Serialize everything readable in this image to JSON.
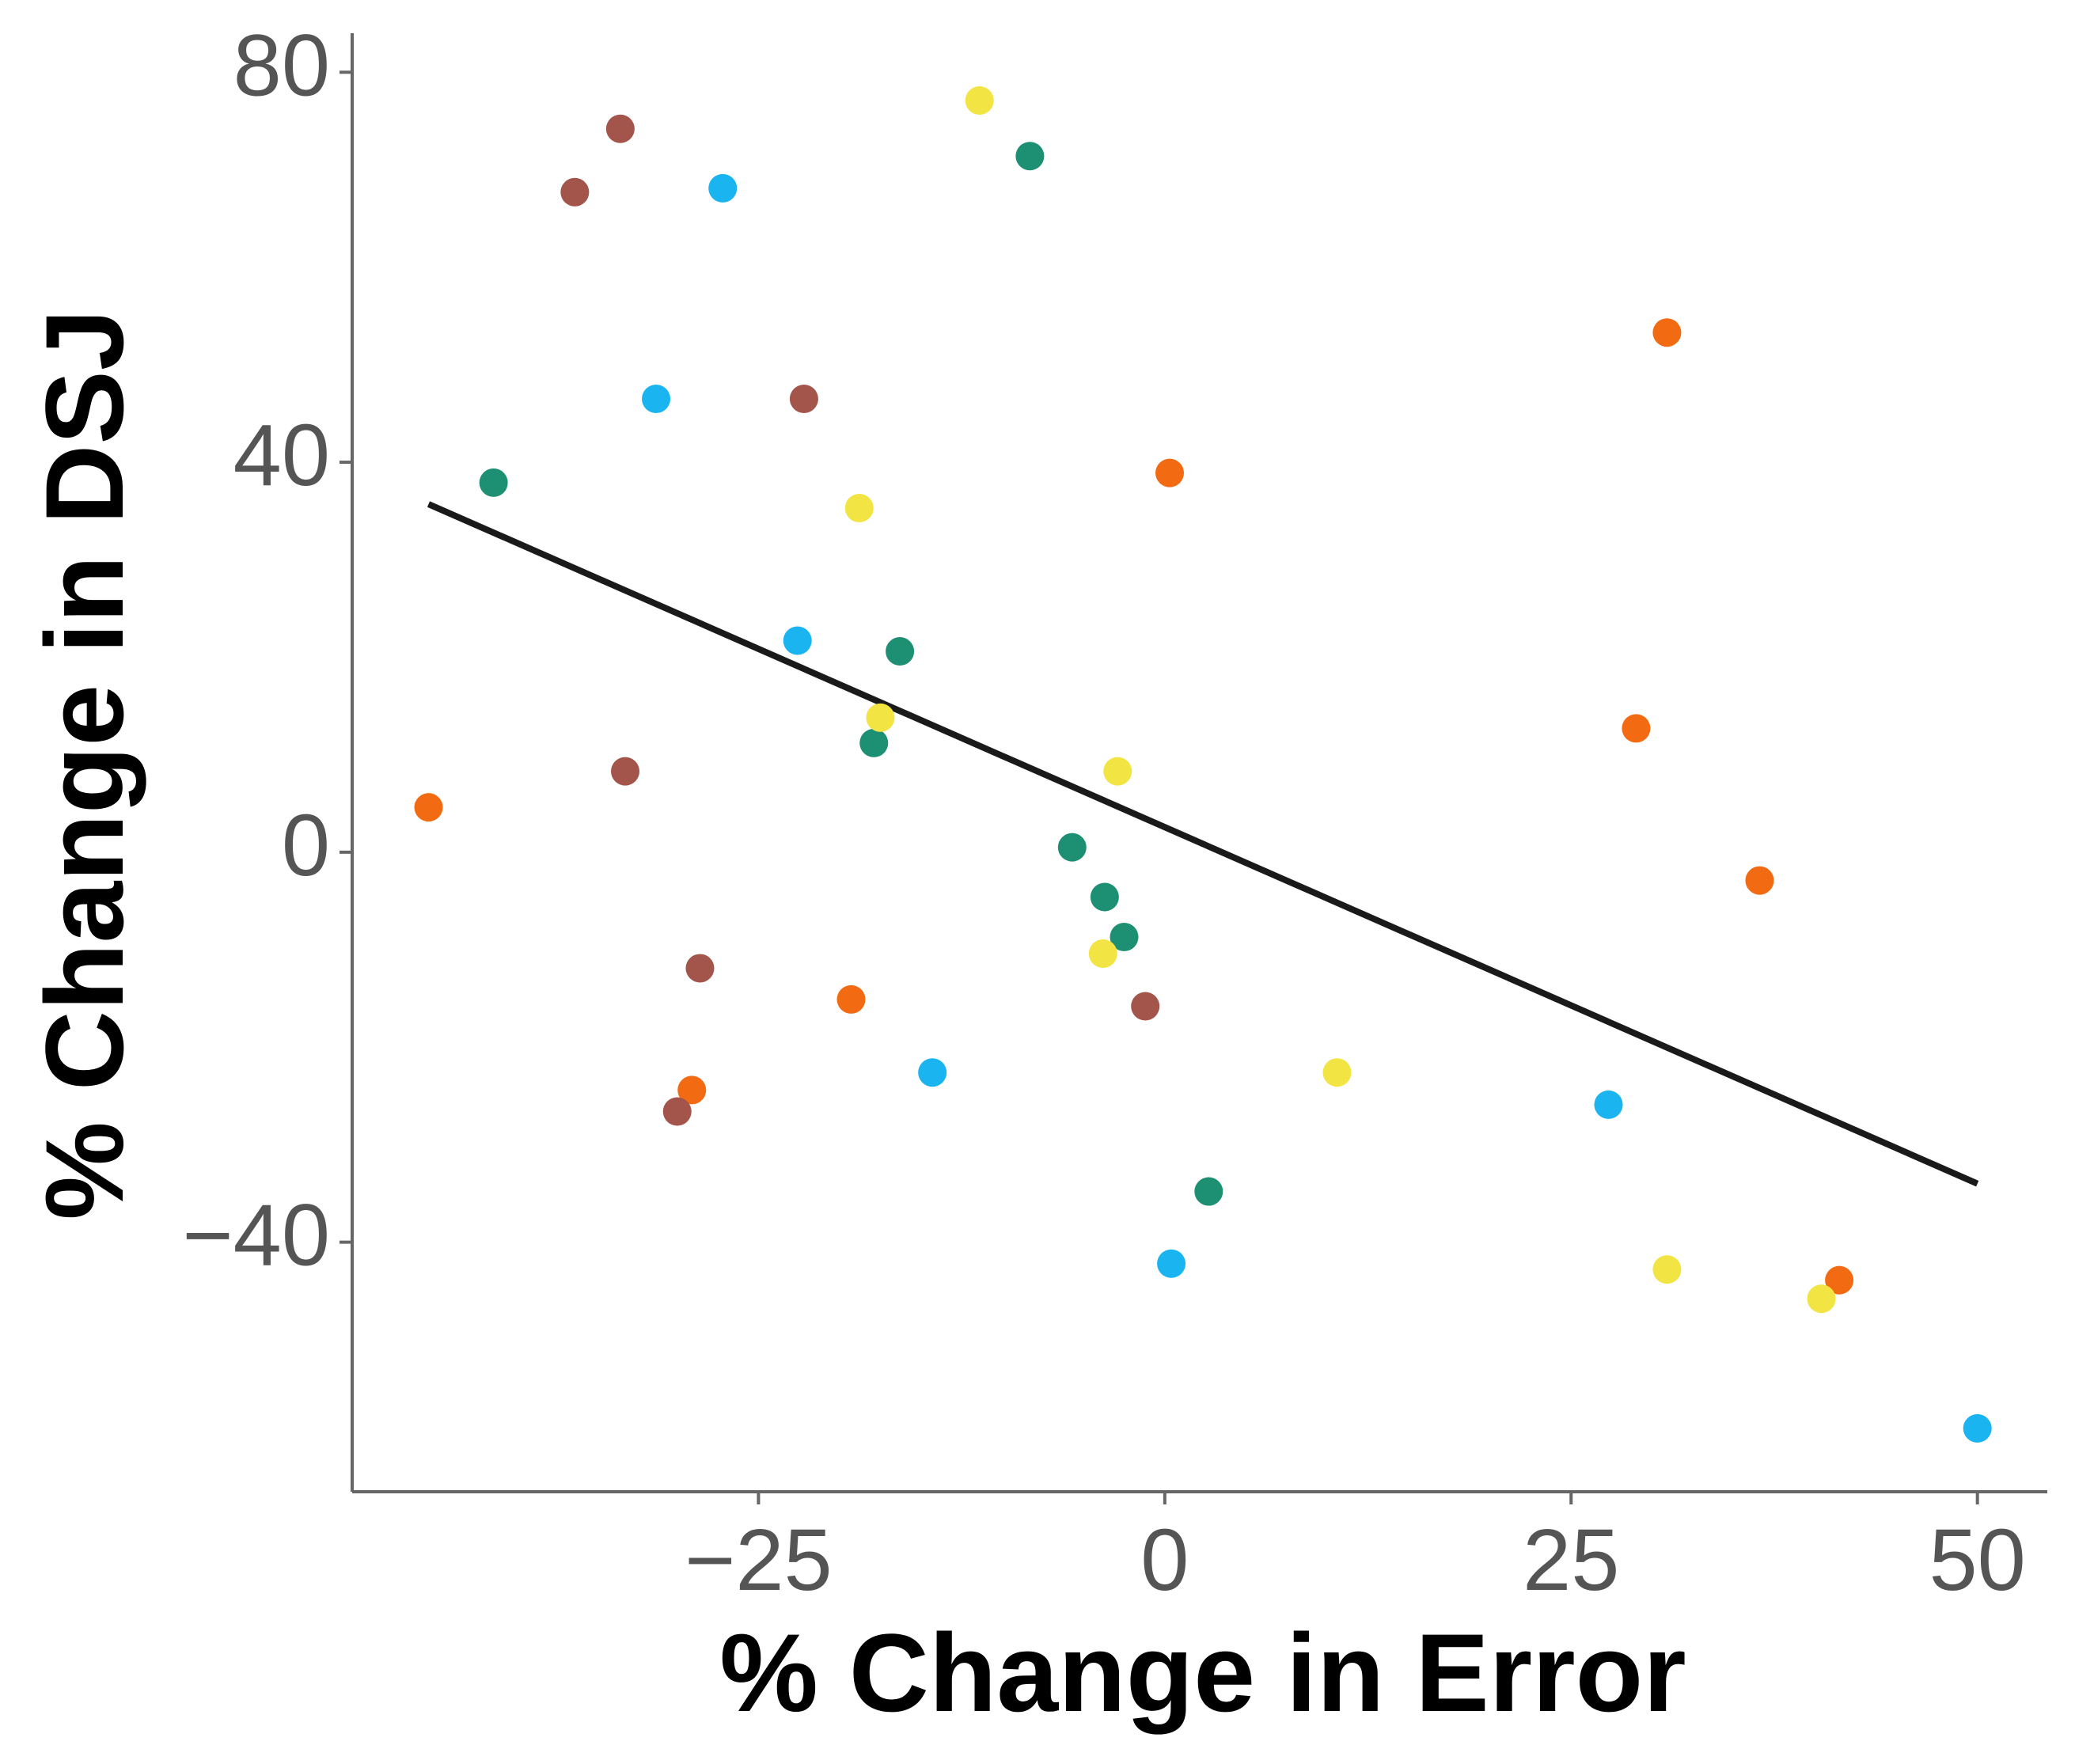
{
  "chart_data": {
    "type": "scatter",
    "xlabel": "% Change in Error",
    "ylabel": "% Change in DSJ",
    "xlim": [
      -50,
      54.3
    ],
    "ylim": [
      -65.6,
      84
    ],
    "xticks": [
      {
        "value": -25,
        "label": "−25"
      },
      0,
      25,
      50
    ],
    "yticks": [
      {
        "value": -40,
        "label": "−40"
      },
      0,
      40,
      80
    ],
    "grid": false,
    "series": [
      {
        "color": "#f26a12",
        "x": [
          -45.3,
          -29.1,
          -19.3,
          0.3,
          30.9,
          29.0,
          36.6,
          41.5
        ],
        "y": [
          4.6,
          -24.4,
          -15.1,
          38.9,
          53.3,
          12.7,
          -2.9,
          -43.9
        ]
      },
      {
        "color": "#a4554b",
        "x": [
          -36.3,
          -33.5,
          -22.2,
          -33.2,
          -28.6,
          -30.0,
          -1.2
        ],
        "y": [
          67.7,
          74.2,
          46.5,
          8.3,
          -11.9,
          -26.6,
          -15.8
        ]
      },
      {
        "color": "#1ab4f0",
        "x": [
          -27.2,
          -31.3,
          -22.6,
          -14.3,
          0.4,
          27.3,
          50.0
        ],
        "y": [
          68.1,
          46.5,
          21.7,
          -22.6,
          -42.2,
          -25.9,
          -59.1
        ]
      },
      {
        "color": "#1d8f72",
        "x": [
          -41.3,
          -8.3,
          -16.3,
          -17.9,
          -5.7,
          -3.7,
          -2.5,
          2.7
        ],
        "y": [
          37.9,
          71.4,
          20.6,
          11.2,
          0.5,
          -4.6,
          -8.7,
          -34.8
        ]
      },
      {
        "color": "#f2e443",
        "x": [
          -11.4,
          -18.8,
          -17.5,
          -2.9,
          -3.8,
          10.6,
          30.9,
          40.4
        ],
        "y": [
          77.1,
          35.3,
          13.8,
          8.3,
          -10.4,
          -22.6,
          -42.8,
          -45.8
        ]
      }
    ],
    "trend": {
      "color": "#1a1a1a",
      "x": [
        -45.3,
        50.0
      ],
      "y": [
        35.7,
        -34.0
      ]
    }
  }
}
